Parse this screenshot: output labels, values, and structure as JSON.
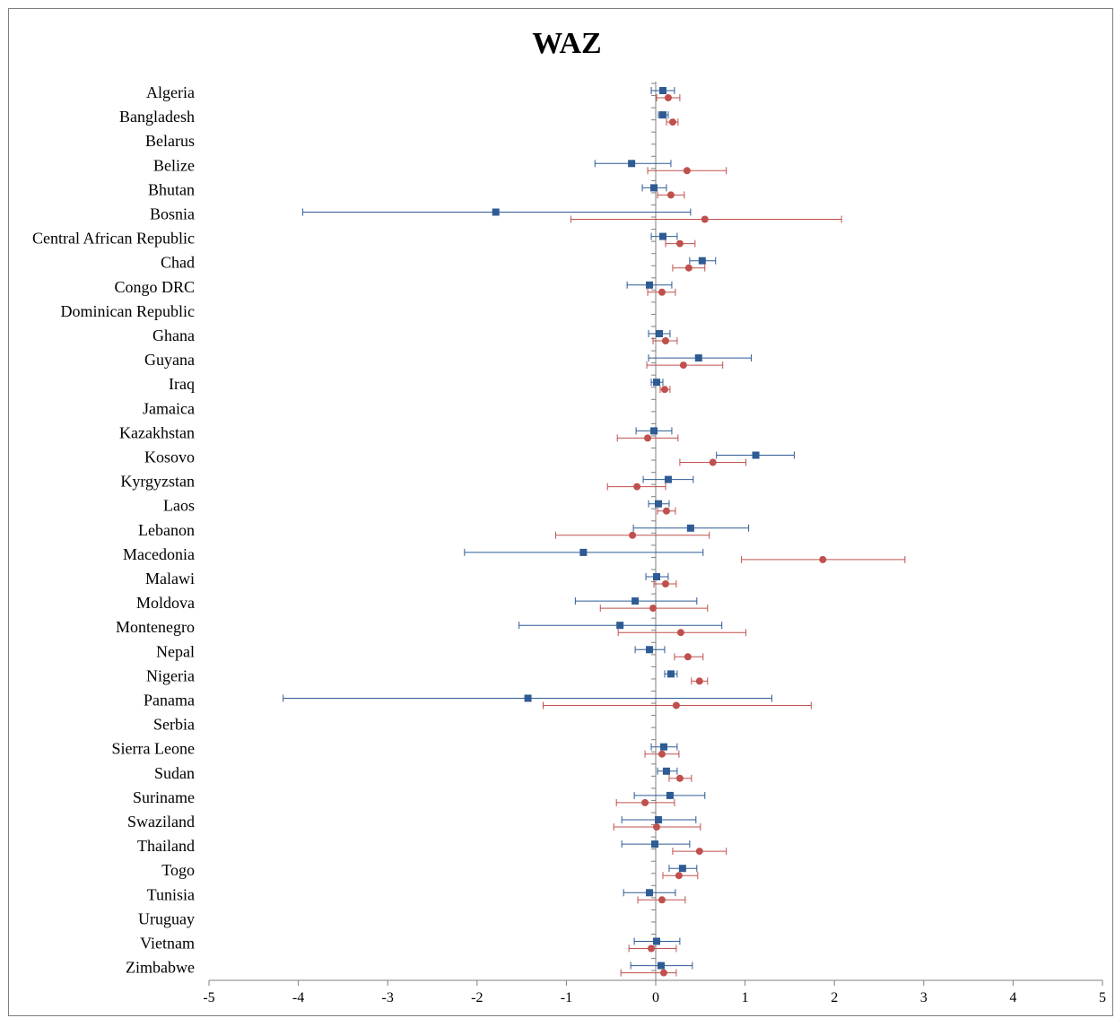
{
  "chart_data": {
    "type": "scatter",
    "title": "WAZ",
    "xlabel": "",
    "ylabel": "",
    "xlim": [
      -5,
      5
    ],
    "xticks": [
      -5,
      -4,
      -3,
      -2,
      -1,
      0,
      1,
      2,
      3,
      4,
      5
    ],
    "grid": false,
    "legend": "none",
    "categories": [
      "Algeria",
      "Bangladesh",
      "Belarus",
      "Belize",
      "Bhutan",
      "Bosnia",
      "Central African Republic",
      "Chad",
      "Congo DRC",
      "Dominican Republic",
      "Ghana",
      "Guyana",
      "Iraq",
      "Jamaica",
      "Kazakhstan",
      "Kosovo",
      "Kyrgyzstan",
      "Laos",
      "Lebanon",
      "Macedonia",
      "Malawi",
      "Moldova",
      "Montenegro",
      "Nepal",
      "Nigeria",
      "Panama",
      "Serbia",
      "Sierra Leone",
      "Sudan",
      "Suriname",
      "Swaziland",
      "Thailand",
      "Togo",
      "Tunisia",
      "Uruguay",
      "Vietnam",
      "Zimbabwe"
    ],
    "series": [
      {
        "marker": "square",
        "color": "#2e5b94",
        "values": [
          0.08,
          0.08,
          null,
          -0.27,
          -0.02,
          -1.79,
          0.08,
          0.52,
          -0.07,
          null,
          0.04,
          0.48,
          0.01,
          null,
          -0.02,
          1.12,
          0.14,
          0.03,
          0.39,
          -0.81,
          0.01,
          -0.23,
          -0.4,
          -0.07,
          0.17,
          -1.43,
          null,
          0.09,
          0.12,
          0.16,
          0.03,
          -0.01,
          0.3,
          -0.07,
          null,
          0.01,
          0.06
        ],
        "ci_low": [
          -0.05,
          0.03,
          null,
          -0.68,
          -0.15,
          -3.95,
          -0.05,
          0.38,
          -0.32,
          null,
          -0.08,
          -0.08,
          -0.05,
          null,
          -0.22,
          0.68,
          -0.14,
          -0.08,
          -0.25,
          -2.14,
          -0.11,
          -0.9,
          -1.53,
          -0.23,
          0.1,
          -4.17,
          null,
          -0.05,
          0.02,
          -0.24,
          -0.38,
          -0.38,
          0.15,
          -0.36,
          null,
          -0.24,
          -0.28
        ],
        "ci_high": [
          0.21,
          0.14,
          null,
          0.17,
          0.12,
          0.39,
          0.24,
          0.67,
          0.18,
          null,
          0.16,
          1.07,
          0.08,
          null,
          0.18,
          1.55,
          0.42,
          0.15,
          1.04,
          0.53,
          0.14,
          0.46,
          0.74,
          0.1,
          0.24,
          1.3,
          null,
          0.24,
          0.24,
          0.55,
          0.45,
          0.38,
          0.46,
          0.22,
          null,
          0.27,
          0.41
        ]
      },
      {
        "marker": "circle",
        "color": "#c0504d",
        "values": [
          0.14,
          0.19,
          null,
          0.35,
          0.17,
          0.55,
          0.27,
          0.37,
          0.07,
          null,
          0.11,
          0.31,
          0.1,
          null,
          -0.09,
          0.64,
          -0.21,
          0.12,
          -0.26,
          1.87,
          0.11,
          -0.03,
          0.28,
          0.36,
          0.49,
          0.23,
          null,
          0.07,
          0.27,
          -0.12,
          0.01,
          0.49,
          0.26,
          0.07,
          null,
          -0.05,
          0.09
        ],
        "ci_low": [
          0.01,
          0.12,
          null,
          -0.09,
          0.02,
          -0.95,
          0.11,
          0.19,
          -0.09,
          null,
          -0.03,
          -0.1,
          0.05,
          null,
          -0.43,
          0.27,
          -0.54,
          0.02,
          -1.12,
          0.96,
          -0.02,
          -0.62,
          -0.42,
          0.21,
          0.4,
          -1.26,
          null,
          -0.12,
          0.15,
          -0.44,
          -0.47,
          0.19,
          0.08,
          -0.2,
          null,
          -0.3,
          -0.39
        ],
        "ci_high": [
          0.27,
          0.25,
          null,
          0.79,
          0.32,
          2.08,
          0.44,
          0.55,
          0.22,
          null,
          0.24,
          0.75,
          0.16,
          null,
          0.25,
          1.01,
          0.11,
          0.22,
          0.6,
          2.79,
          0.23,
          0.58,
          1.01,
          0.53,
          0.58,
          1.74,
          null,
          0.26,
          0.4,
          0.21,
          0.5,
          0.79,
          0.47,
          0.33,
          null,
          0.23,
          0.23
        ]
      }
    ]
  },
  "colors": {
    "axis": "#808080",
    "square_series": "#2e5b94",
    "circle_series": "#c0504d"
  }
}
